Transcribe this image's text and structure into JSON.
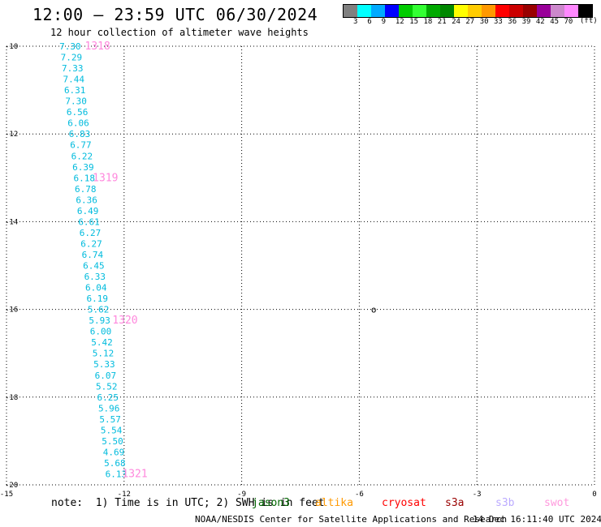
{
  "header": {
    "title": "12:00 – 23:59 UTC 06/30/2024",
    "subtitle": "12 hour collection of altimeter wave heights"
  },
  "color_scale": {
    "colors": [
      "#808080",
      "#00ffff",
      "#00aaff",
      "#0000ff",
      "#00cc00",
      "#33ff33",
      "#00aa00",
      "#008800",
      "#ffff00",
      "#ffcc00",
      "#ff9900",
      "#ff0000",
      "#cc0000",
      "#990000",
      "#990099",
      "#cc88cc",
      "#ff88ff",
      "#000000"
    ],
    "labels": [
      "3",
      "6",
      "9",
      "12",
      "15",
      "18",
      "21",
      "24",
      "27",
      "30",
      "33",
      "36",
      "39",
      "42",
      "45",
      "70"
    ],
    "unit": "(ft)"
  },
  "chart_data": {
    "type": "scatter",
    "title": "12:00 – 23:59 UTC 06/30/2024",
    "xlim": [
      -15,
      0
    ],
    "ylim": [
      -20,
      -10
    ],
    "x_ticks": [
      -15,
      -12,
      -9,
      -6,
      -3,
      0
    ],
    "y_ticks": [
      -10,
      -12,
      -14,
      -16,
      -18,
      -20
    ],
    "grid": true,
    "series": [
      {
        "name": "jason3",
        "color": "#00bbdd",
        "points": [
          {
            "x": -13.65,
            "y": -10.0,
            "label": "7.30"
          },
          {
            "x": -13.62,
            "y": -10.25,
            "label": "7.29"
          },
          {
            "x": -13.59,
            "y": -10.5,
            "label": "7.33"
          },
          {
            "x": -13.56,
            "y": -10.75,
            "label": "7.44"
          },
          {
            "x": -13.53,
            "y": -11.0,
            "label": "6.31"
          },
          {
            "x": -13.5,
            "y": -11.25,
            "label": "7.30"
          },
          {
            "x": -13.47,
            "y": -11.5,
            "label": "6.56"
          },
          {
            "x": -13.44,
            "y": -11.75,
            "label": "6.06"
          },
          {
            "x": -13.41,
            "y": -12.0,
            "label": "6.83"
          },
          {
            "x": -13.38,
            "y": -12.25,
            "label": "6.77"
          },
          {
            "x": -13.35,
            "y": -12.5,
            "label": "6.22"
          },
          {
            "x": -13.32,
            "y": -12.75,
            "label": "6.39"
          },
          {
            "x": -13.29,
            "y": -13.0,
            "label": "6.18"
          },
          {
            "x": -13.26,
            "y": -13.25,
            "label": "6.78"
          },
          {
            "x": -13.23,
            "y": -13.5,
            "label": "6.36"
          },
          {
            "x": -13.2,
            "y": -13.75,
            "label": "6.49"
          },
          {
            "x": -13.17,
            "y": -14.0,
            "label": "6.61"
          },
          {
            "x": -13.14,
            "y": -14.25,
            "label": "6.27"
          },
          {
            "x": -13.11,
            "y": -14.5,
            "label": "6.27"
          },
          {
            "x": -13.08,
            "y": -14.75,
            "label": "6.74"
          },
          {
            "x": -13.05,
            "y": -15.0,
            "label": "6.45"
          },
          {
            "x": -13.02,
            "y": -15.25,
            "label": "6.33"
          },
          {
            "x": -12.99,
            "y": -15.5,
            "label": "6.04"
          },
          {
            "x": -12.96,
            "y": -15.75,
            "label": "6.19"
          },
          {
            "x": -12.93,
            "y": -16.0,
            "label": "5.62"
          },
          {
            "x": -12.9,
            "y": -16.25,
            "label": "5.93"
          },
          {
            "x": -12.87,
            "y": -16.5,
            "label": "6.00"
          },
          {
            "x": -12.84,
            "y": -16.75,
            "label": "5.42"
          },
          {
            "x": -12.81,
            "y": -17.0,
            "label": "5.12"
          },
          {
            "x": -12.78,
            "y": -17.25,
            "label": "5.33"
          },
          {
            "x": -12.75,
            "y": -17.5,
            "label": "6.07"
          },
          {
            "x": -12.72,
            "y": -17.75,
            "label": "5.52"
          },
          {
            "x": -12.69,
            "y": -18.0,
            "label": "6.25"
          },
          {
            "x": -12.66,
            "y": -18.25,
            "label": "5.96"
          },
          {
            "x": -12.63,
            "y": -18.5,
            "label": "5.57"
          },
          {
            "x": -12.6,
            "y": -18.75,
            "label": "5.54"
          },
          {
            "x": -12.57,
            "y": -19.0,
            "label": "5.50"
          },
          {
            "x": -12.54,
            "y": -19.25,
            "label": "4.69"
          },
          {
            "x": -12.51,
            "y": -19.5,
            "label": "5.68"
          },
          {
            "x": -12.48,
            "y": -19.75,
            "label": "6.13"
          }
        ]
      }
    ],
    "time_labels": [
      {
        "x": -13.0,
        "y": -10.0,
        "label": "1318"
      },
      {
        "x": -12.8,
        "y": -13.0,
        "label": "1319"
      },
      {
        "x": -12.3,
        "y": -16.25,
        "label": "1320"
      },
      {
        "x": -12.05,
        "y": -19.75,
        "label": "1321"
      }
    ],
    "map_marks": [
      {
        "x": -5.7,
        "y": -16.0,
        "label": "o"
      }
    ]
  },
  "footer": {
    "note": "note:  1) Time is in UTC; 2) SWH is in feet",
    "satellites": [
      {
        "name": "jason3",
        "color": "#006600"
      },
      {
        "name": "altika",
        "color": "#ff9900"
      },
      {
        "name": "cryosat",
        "color": "#ff0000"
      },
      {
        "name": "s3a",
        "color": "#990000"
      },
      {
        "name": "s3b",
        "color": "#bbaaff"
      },
      {
        "name": "swot",
        "color": "#ff99dd"
      }
    ],
    "credit": "NOAA/NESDIS Center for Satellite Applications and Research",
    "timestamp": "14 Dec 16:11:40 UTC 2024"
  }
}
